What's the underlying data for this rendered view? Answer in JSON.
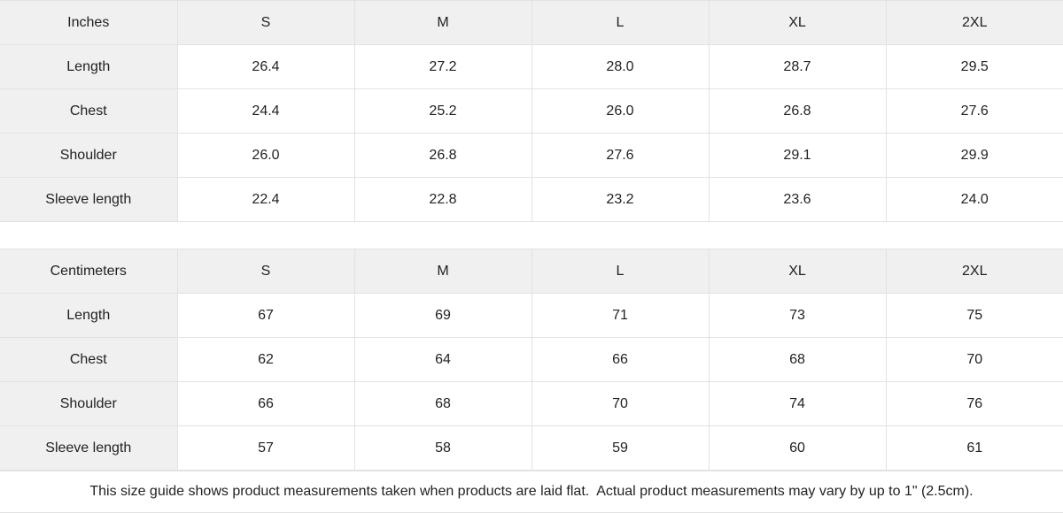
{
  "tables": [
    {
      "unit_label": "Inches",
      "sizes": [
        "S",
        "M",
        "L",
        "XL",
        "2XL"
      ],
      "rows": [
        {
          "label": "Length",
          "values": [
            "26.4",
            "27.2",
            "28.0",
            "28.7",
            "29.5"
          ]
        },
        {
          "label": "Chest",
          "values": [
            "24.4",
            "25.2",
            "26.0",
            "26.8",
            "27.6"
          ]
        },
        {
          "label": "Shoulder",
          "values": [
            "26.0",
            "26.8",
            "27.6",
            "29.1",
            "29.9"
          ]
        },
        {
          "label": "Sleeve length",
          "values": [
            "22.4",
            "22.8",
            "23.2",
            "23.6",
            "24.0"
          ]
        }
      ]
    },
    {
      "unit_label": "Centimeters",
      "sizes": [
        "S",
        "M",
        "L",
        "XL",
        "2XL"
      ],
      "rows": [
        {
          "label": "Length",
          "values": [
            "67",
            "69",
            "71",
            "73",
            "75"
          ]
        },
        {
          "label": "Chest",
          "values": [
            "62",
            "64",
            "66",
            "68",
            "70"
          ]
        },
        {
          "label": "Shoulder",
          "values": [
            "66",
            "68",
            "70",
            "74",
            "76"
          ]
        },
        {
          "label": "Sleeve length",
          "values": [
            "57",
            "58",
            "59",
            "60",
            "61"
          ]
        }
      ]
    }
  ],
  "footer": {
    "note": "This size guide shows product measurements taken when products are laid flat.  Actual product measurements may vary by up to 1\" (2.5cm)."
  },
  "colors": {
    "header_bg": "#f0f0f0",
    "border": "#e2e2e2",
    "text": "#222222",
    "background": "#ffffff"
  }
}
